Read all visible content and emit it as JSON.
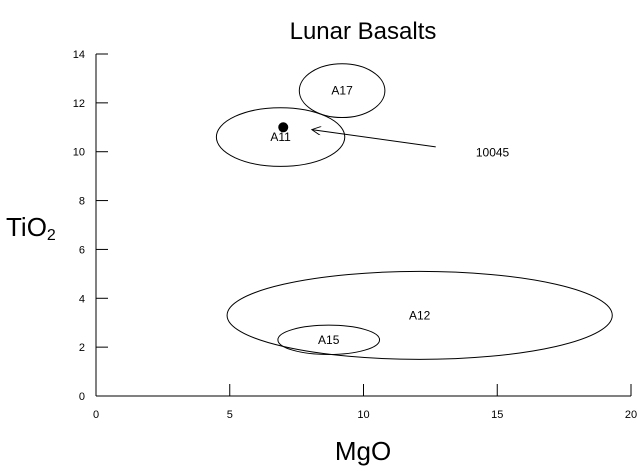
{
  "chart_data": {
    "type": "scatter",
    "title": "Lunar Basalts",
    "xlabel": "MgO",
    "ylabel": {
      "main": "TiO",
      "sub": "2"
    },
    "xlim": [
      0,
      20
    ],
    "ylim": [
      0,
      14
    ],
    "x_ticks": [
      0,
      5,
      10,
      15,
      20
    ],
    "y_ticks": [
      0,
      2,
      4,
      6,
      8,
      10,
      12,
      14
    ],
    "grid": false,
    "fields": [
      {
        "name": "A17",
        "cx": 9.2,
        "cy": 12.5,
        "rx": 1.6,
        "ry": 1.1
      },
      {
        "name": "A11",
        "cx": 6.9,
        "cy": 10.6,
        "rx": 2.4,
        "ry": 1.2
      },
      {
        "name": "A12",
        "cx": 12.1,
        "cy": 3.3,
        "rx": 7.2,
        "ry": 1.8
      },
      {
        "name": "A15",
        "cx": 8.7,
        "cy": 2.3,
        "rx": 1.9,
        "ry": 0.6
      }
    ],
    "points": [
      {
        "name": "10045",
        "x": 7.0,
        "y": 11.0
      }
    ],
    "annotation": {
      "text": "10045",
      "text_x": 14.2,
      "text_y": 9.8,
      "arrow_from": [
        12.7,
        10.2
      ],
      "arrow_to": [
        8.1,
        10.9
      ]
    }
  }
}
